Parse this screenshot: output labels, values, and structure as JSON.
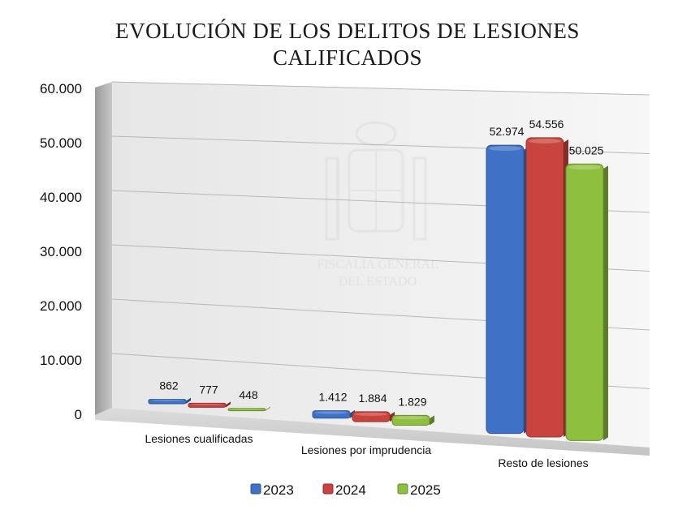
{
  "chart_data": {
    "type": "bar",
    "title": [
      "EVOLUCIÓN DE LOS DELITOS DE LESIONES",
      "CALIFICADOS"
    ],
    "categories": [
      "Lesiones cualificadas",
      "Lesiones por imprudencia",
      "Resto de lesiones"
    ],
    "series": [
      {
        "name": "2023",
        "values": [
          862,
          1412,
          52974
        ],
        "labels": [
          "862",
          "1.412",
          "52.974"
        ],
        "color": "#3f72c6"
      },
      {
        "name": "2024",
        "values": [
          777,
          1884,
          54556
        ],
        "labels": [
          "777",
          "1.884",
          "54.556"
        ],
        "color": "#c9443f"
      },
      {
        "name": "2025",
        "values": [
          448,
          1829,
          50025
        ],
        "labels": [
          "448",
          "1.829",
          "50.025"
        ],
        "color": "#8fbf3f"
      }
    ],
    "ylim": [
      0,
      60000
    ],
    "yticks": [
      0,
      10000,
      20000,
      30000,
      40000,
      50000,
      60000
    ],
    "ytick_labels": [
      "0",
      "10.000",
      "20.000",
      "30.000",
      "40.000",
      "50.000",
      "60.000"
    ],
    "grid": true,
    "legend_position": "bottom",
    "watermark": [
      "FISCALÍA GENERAL",
      "DEL ESTADO"
    ]
  }
}
